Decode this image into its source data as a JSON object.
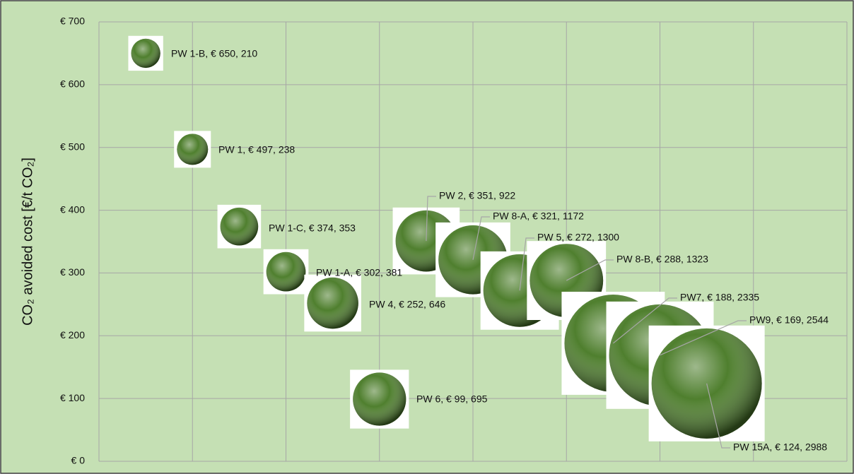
{
  "chart_data": {
    "type": "bubble",
    "y_axis_label": "CO₂ avoided cost [€/t CO₂]",
    "xlim": [
      0,
      16
    ],
    "xticks": [
      0,
      2,
      4,
      6,
      8,
      10,
      12,
      14,
      16
    ],
    "ylim": [
      0,
      700
    ],
    "yticks": [
      {
        "value": 0,
        "label": "€ 0"
      },
      {
        "value": 100,
        "label": "€ 100"
      },
      {
        "value": 200,
        "label": "€ 200"
      },
      {
        "value": 300,
        "label": "€ 300"
      },
      {
        "value": 400,
        "label": "€ 400"
      },
      {
        "value": 500,
        "label": "€ 500"
      },
      {
        "value": 600,
        "label": "€ 600"
      },
      {
        "value": 700,
        "label": "€ 700"
      }
    ],
    "grid": true,
    "series": [
      {
        "color": "#4f7f2e",
        "x": [
          1,
          2,
          3,
          4,
          5,
          6,
          7,
          8,
          9,
          10,
          11,
          12,
          13
        ],
        "values": [
          650,
          497,
          374,
          302,
          252,
          99,
          351,
          321,
          272,
          288,
          188,
          169,
          124
        ],
        "sizes": [
          210,
          238,
          353,
          381,
          646,
          695,
          922,
          1172,
          1300,
          1323,
          2335,
          2544,
          2988
        ],
        "value_labels": [
          "PW 1-B, € 650, 210",
          "PW 1, € 497, 238",
          "PW 1-C, € 374, 353",
          "PW 1-A, € 302, 381",
          "PW 4, € 252, 646",
          "PW 6, € 99, 695",
          "PW 2, € 351, 922",
          "PW 8-A, € 321, 1172",
          "PW 5, € 272, 1300",
          "PW 8-B, € 288, 1323",
          "PW7, € 188, 2335",
          "PW9, € 169, 2544",
          "PW 15A, € 124, 2988"
        ]
      }
    ]
  }
}
